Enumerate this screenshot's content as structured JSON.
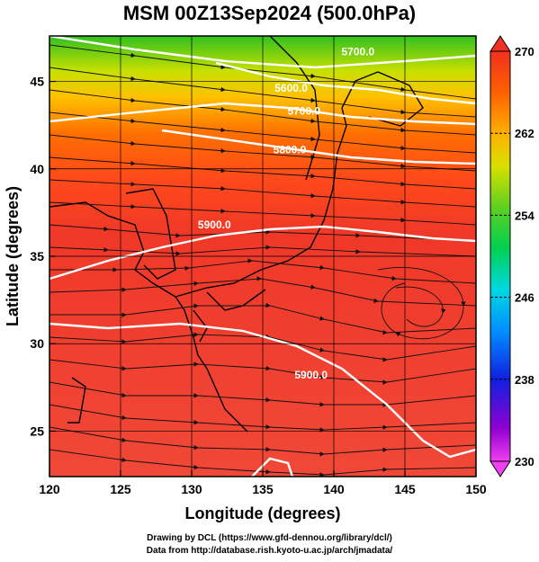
{
  "title": "MSM 00Z13Sep2024 (500.0hPa)",
  "map": {
    "xlabel": "Longitude (degrees)",
    "ylabel": "Latitude  (degrees)",
    "lon_range": [
      120,
      150
    ],
    "lat_range": [
      22.4,
      47.6
    ],
    "lon_ticks": [
      "120",
      "125",
      "130",
      "135",
      "140",
      "145",
      "150"
    ],
    "lat_ticks": [
      "25",
      "30",
      "35",
      "40",
      "45"
    ],
    "gridlines": true
  },
  "colorbar": {
    "range": [
      230,
      270
    ],
    "ticks": [
      "270",
      "262",
      "254",
      "246",
      "238",
      "230"
    ],
    "colors": [
      "#e600e6",
      "#3a00d8",
      "#0040ff",
      "#00a0ff",
      "#00d8d0",
      "#00d060",
      "#40d020",
      "#b0e000",
      "#ffe000",
      "#ff9000",
      "#ff4000",
      "#f03020"
    ]
  },
  "contours": [
    {
      "label": "5700.0",
      "lon": 141.7,
      "lat": 46.5
    },
    {
      "label": "5600.0",
      "lon": 137.0,
      "lat": 44.4
    },
    {
      "label": "5700.0",
      "lon": 137.9,
      "lat": 43.1
    },
    {
      "label": "5800.0",
      "lon": 136.9,
      "lat": 40.9
    },
    {
      "label": "5900.0",
      "lon": 131.6,
      "lat": 36.6
    },
    {
      "label": "5900.0",
      "lon": 138.4,
      "lat": 28.0
    }
  ],
  "credits": {
    "line1": "Drawing by DCL (https://www.gfd-dennou.org/library/dcl/)",
    "line2": "Data from http://database.rish.kyoto-u.ac.jp/arch/jmadata/"
  }
}
